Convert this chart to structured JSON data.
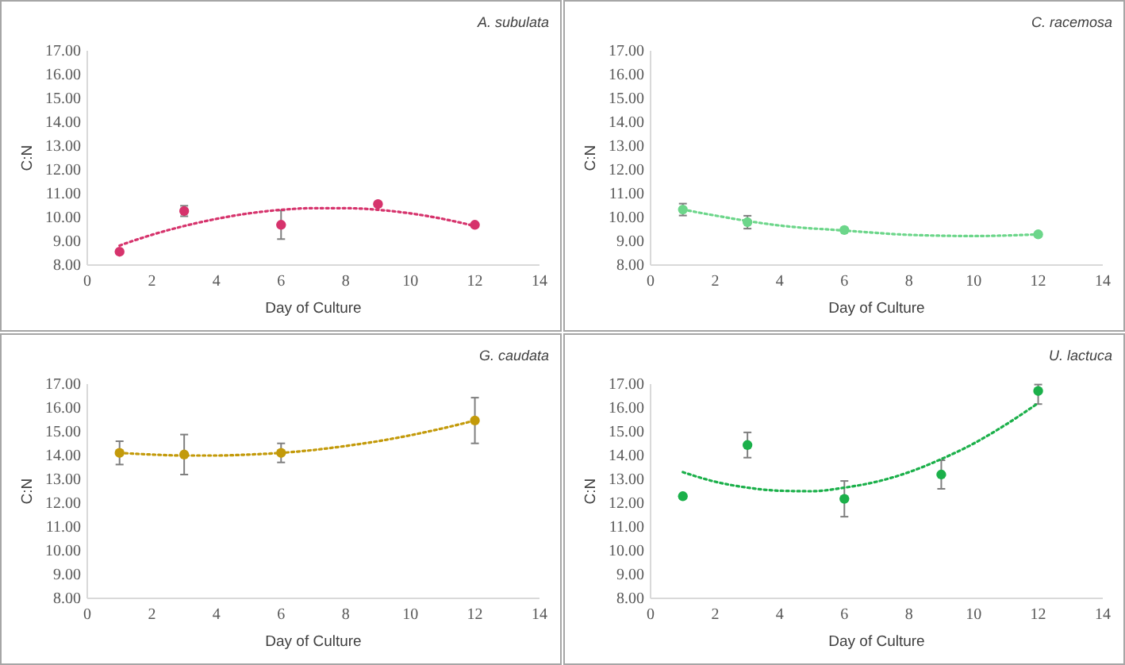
{
  "chart_data": [
    {
      "type": "scatter",
      "title": "A. subulata",
      "xlabel": "Day of Culture",
      "ylabel": "C:N",
      "xlim": [
        0,
        14
      ],
      "xticks": [
        0,
        2,
        4,
        6,
        8,
        10,
        12,
        14
      ],
      "ylim": [
        8,
        17
      ],
      "yticks": [
        {
          "value": 8,
          "label": "8.00"
        },
        {
          "value": 9,
          "label": "9.00"
        },
        {
          "value": 10,
          "label": "10.00"
        },
        {
          "value": 11,
          "label": "11.00"
        },
        {
          "value": 12,
          "label": "12.00"
        },
        {
          "value": 13,
          "label": "13.00"
        },
        {
          "value": 14,
          "label": "14.00"
        },
        {
          "value": 15,
          "label": "15.00"
        },
        {
          "value": 16,
          "label": "16.00"
        },
        {
          "value": 17,
          "label": "17.00"
        }
      ],
      "grid": false,
      "line_style": "dotted",
      "series": [
        {
          "marker": "circle",
          "color": "#d6336c",
          "x": [
            1,
            3,
            6,
            9,
            12
          ],
          "values": [
            8.56,
            10.27,
            9.69,
            10.56,
            9.69
          ],
          "errors": [
            null,
            0.22,
            0.6,
            null,
            null
          ]
        },
        {
          "type": "line",
          "marker": "none",
          "color": "#d6336c",
          "x": [
            1,
            2,
            3,
            4,
            5,
            6,
            7,
            8,
            9,
            10,
            11,
            12
          ],
          "values": [
            8.82,
            9.27,
            9.64,
            9.94,
            10.17,
            10.32,
            10.39,
            10.39,
            10.32,
            10.17,
            9.94,
            9.64
          ]
        }
      ]
    },
    {
      "type": "scatter",
      "title": "C. racemosa",
      "xlabel": "Day of Culture",
      "ylabel": "C:N",
      "xlim": [
        0,
        14
      ],
      "xticks": [
        0,
        2,
        4,
        6,
        8,
        10,
        12,
        14
      ],
      "ylim": [
        8,
        17
      ],
      "yticks": [
        {
          "value": 8,
          "label": "8.00"
        },
        {
          "value": 9,
          "label": "9.00"
        },
        {
          "value": 10,
          "label": "10.00"
        },
        {
          "value": 11,
          "label": "11.00"
        },
        {
          "value": 12,
          "label": "12.00"
        },
        {
          "value": 13,
          "label": "13.00"
        },
        {
          "value": 14,
          "label": "14.00"
        },
        {
          "value": 15,
          "label": "15.00"
        },
        {
          "value": 16,
          "label": "16.00"
        },
        {
          "value": 17,
          "label": "17.00"
        }
      ],
      "grid": false,
      "line_style": "dotted",
      "series": [
        {
          "marker": "circle",
          "color": "#6cd68a",
          "x": [
            1,
            3,
            6,
            12
          ],
          "values": [
            10.33,
            9.8,
            9.47,
            9.29
          ],
          "errors": [
            0.25,
            0.27,
            null,
            null
          ]
        },
        {
          "type": "line",
          "marker": "none",
          "color": "#6cd68a",
          "x": [
            1,
            2,
            3,
            4,
            6,
            8,
            10,
            12
          ],
          "values": [
            10.33,
            10.08,
            9.85,
            9.66,
            9.45,
            9.27,
            9.22,
            9.29
          ]
        }
      ]
    },
    {
      "type": "scatter",
      "title": "G. caudata",
      "xlabel": "Day of Culture",
      "ylabel": "C:N",
      "xlim": [
        0,
        14
      ],
      "xticks": [
        0,
        2,
        4,
        6,
        8,
        10,
        12,
        14
      ],
      "ylim": [
        8,
        17
      ],
      "yticks": [
        {
          "value": 8,
          "label": "8.00"
        },
        {
          "value": 9,
          "label": "9.00"
        },
        {
          "value": 10,
          "label": "10.00"
        },
        {
          "value": 11,
          "label": "11.00"
        },
        {
          "value": 12,
          "label": "12.00"
        },
        {
          "value": 13,
          "label": "13.00"
        },
        {
          "value": 14,
          "label": "14.00"
        },
        {
          "value": 15,
          "label": "15.00"
        },
        {
          "value": 16,
          "label": "16.00"
        },
        {
          "value": 17,
          "label": "17.00"
        }
      ],
      "grid": false,
      "line_style": "dotted",
      "series": [
        {
          "marker": "circle",
          "color": "#c39a0a",
          "x": [
            1,
            3,
            6,
            12
          ],
          "values": [
            14.11,
            14.04,
            14.11,
            15.47
          ],
          "errors": [
            0.49,
            0.84,
            0.4,
            0.96
          ]
        },
        {
          "type": "line",
          "marker": "none",
          "color": "#c39a0a",
          "x": [
            1,
            2,
            3,
            4,
            5,
            6,
            7,
            8,
            9,
            10,
            11,
            12
          ],
          "values": [
            14.11,
            14.04,
            14.0,
            14.0,
            14.04,
            14.11,
            14.23,
            14.4,
            14.6,
            14.85,
            15.14,
            15.47
          ]
        }
      ]
    },
    {
      "type": "scatter",
      "title": "U. lactuca",
      "xlabel": "Day of Culture",
      "ylabel": "C:N",
      "xlim": [
        0,
        14
      ],
      "xticks": [
        0,
        2,
        4,
        6,
        8,
        10,
        12,
        14
      ],
      "ylim": [
        8,
        17
      ],
      "yticks": [
        {
          "value": 8,
          "label": "8.00"
        },
        {
          "value": 9,
          "label": "9.00"
        },
        {
          "value": 10,
          "label": "10.00"
        },
        {
          "value": 11,
          "label": "11.00"
        },
        {
          "value": 12,
          "label": "12.00"
        },
        {
          "value": 13,
          "label": "13.00"
        },
        {
          "value": 14,
          "label": "14.00"
        },
        {
          "value": 15,
          "label": "15.00"
        },
        {
          "value": 16,
          "label": "16.00"
        },
        {
          "value": 17,
          "label": "17.00"
        }
      ],
      "grid": false,
      "line_style": "dotted",
      "series": [
        {
          "marker": "circle",
          "color": "#1bb04a",
          "x": [
            1,
            3,
            6,
            9,
            12
          ],
          "values": [
            12.29,
            14.44,
            12.18,
            13.2,
            16.71
          ],
          "errors": [
            null,
            0.53,
            0.75,
            0.6,
            [
              16.16,
              16.98
            ]
          ]
        },
        {
          "type": "line",
          "marker": "none",
          "color": "#1bb04a",
          "x": [
            1,
            2,
            3,
            4,
            5,
            6,
            7,
            8,
            9,
            10,
            11,
            12
          ],
          "values": [
            13.3,
            12.9,
            12.65,
            12.52,
            12.5,
            12.65,
            12.9,
            13.3,
            13.85,
            14.5,
            15.3,
            16.2
          ]
        }
      ]
    }
  ]
}
